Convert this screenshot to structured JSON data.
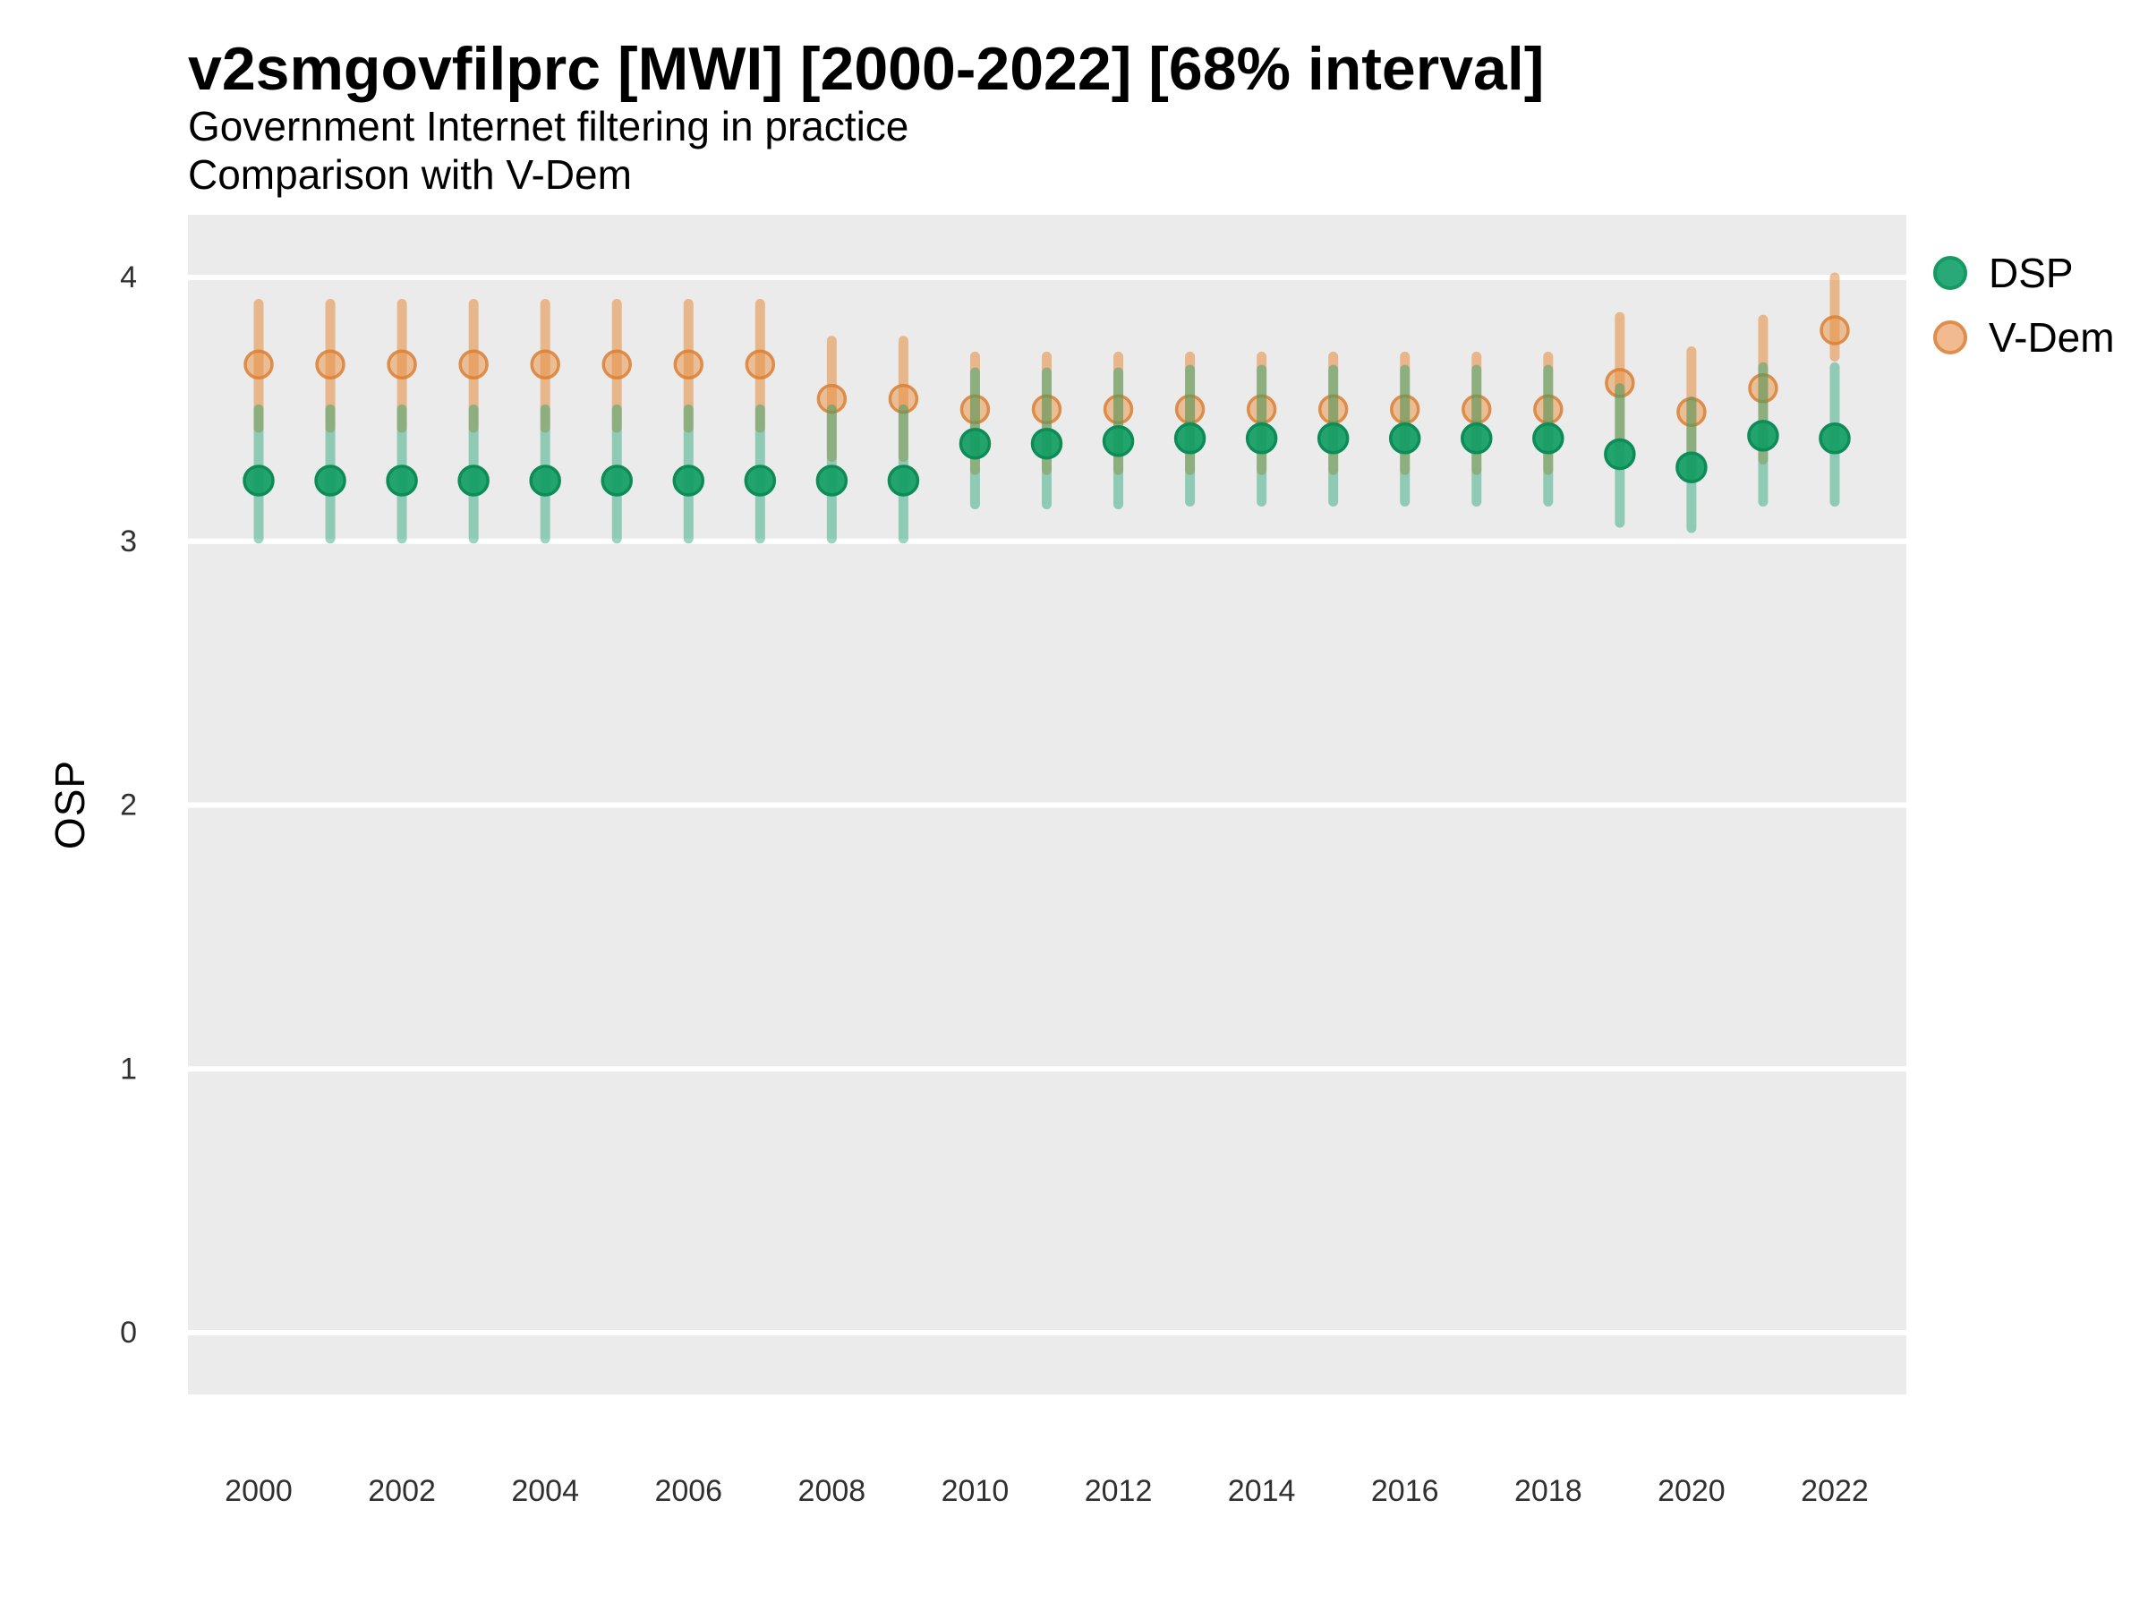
{
  "header": {
    "title": "v2smgovfilprc [MWI] [2000-2022] [68% interval]",
    "subtitle1": "Government Internet filtering in practice",
    "subtitle2": "Comparison with V-Dem"
  },
  "legend": {
    "items": [
      {
        "label": "DSP"
      },
      {
        "label": "V-Dem"
      }
    ],
    "position": "right-top"
  },
  "colors": {
    "panel_background": "#EBEBEB",
    "gridline": "#FFFFFF",
    "dsp_green": "#20A471",
    "dsp_point_fill": "rgba(17,157,99,0.92)",
    "dsp_point_stroke": "#0D8C58",
    "dsp_line": "rgba(32,164,112,0.45)",
    "vdem_orange": "#E68A3C",
    "vdem_point_fill": "rgba(232,144,66,0.5)",
    "vdem_point_stroke": "rgba(219,128,52,0.85)",
    "vdem_line": "rgba(230,138,60,0.55)",
    "tick_text": "#303030",
    "title_text": "#000000"
  },
  "chart_data": {
    "type": "pointrange",
    "title": "v2smgovfilprc [MWI] [2000-2022] [68% interval]",
    "subtitle": "Government Internet filtering in practice — Comparison with V-Dem",
    "xlabel": "",
    "ylabel": "OSP",
    "interval": "68%",
    "ylim": [
      -0.23,
      4.24
    ],
    "xlim": [
      1999.0,
      2023.0
    ],
    "grid": "major-horizontal-only",
    "legend_position": "right",
    "y_ticks": [
      4,
      3,
      2,
      1,
      0
    ],
    "x_ticks": [
      2000,
      2002,
      2004,
      2006,
      2008,
      2010,
      2012,
      2014,
      2016,
      2018,
      2020,
      2022
    ],
    "x": [
      2000,
      2001,
      2002,
      2003,
      2004,
      2005,
      2006,
      2007,
      2008,
      2009,
      2010,
      2011,
      2012,
      2013,
      2014,
      2015,
      2016,
      2017,
      2018,
      2019,
      2020,
      2021,
      2022
    ],
    "series": [
      {
        "name": "V-Dem",
        "mid": [
          3.67,
          3.67,
          3.67,
          3.67,
          3.67,
          3.67,
          3.67,
          3.67,
          3.54,
          3.54,
          3.5,
          3.5,
          3.5,
          3.5,
          3.5,
          3.5,
          3.5,
          3.5,
          3.5,
          3.6,
          3.49,
          3.58,
          3.8
        ],
        "lo": [
          3.43,
          3.43,
          3.43,
          3.43,
          3.43,
          3.43,
          3.43,
          3.43,
          3.32,
          3.32,
          3.27,
          3.27,
          3.27,
          3.27,
          3.27,
          3.27,
          3.27,
          3.27,
          3.27,
          3.37,
          3.25,
          3.31,
          3.7
        ],
        "hi": [
          3.9,
          3.9,
          3.9,
          3.9,
          3.9,
          3.9,
          3.9,
          3.9,
          3.76,
          3.76,
          3.7,
          3.7,
          3.7,
          3.7,
          3.7,
          3.7,
          3.7,
          3.7,
          3.7,
          3.85,
          3.72,
          3.84,
          4.0
        ]
      },
      {
        "name": "DSP",
        "mid": [
          3.23,
          3.23,
          3.23,
          3.23,
          3.23,
          3.23,
          3.23,
          3.23,
          3.23,
          3.23,
          3.37,
          3.37,
          3.38,
          3.39,
          3.39,
          3.39,
          3.39,
          3.39,
          3.39,
          3.33,
          3.28,
          3.4,
          3.39
        ],
        "lo": [
          3.01,
          3.01,
          3.01,
          3.01,
          3.01,
          3.01,
          3.01,
          3.01,
          3.01,
          3.01,
          3.14,
          3.14,
          3.14,
          3.15,
          3.15,
          3.15,
          3.15,
          3.15,
          3.15,
          3.07,
          3.05,
          3.15,
          3.15
        ],
        "hi": [
          3.5,
          3.5,
          3.5,
          3.5,
          3.5,
          3.5,
          3.5,
          3.5,
          3.5,
          3.5,
          3.64,
          3.64,
          3.64,
          3.65,
          3.65,
          3.65,
          3.65,
          3.65,
          3.65,
          3.58,
          3.53,
          3.66,
          3.66
        ]
      }
    ]
  }
}
